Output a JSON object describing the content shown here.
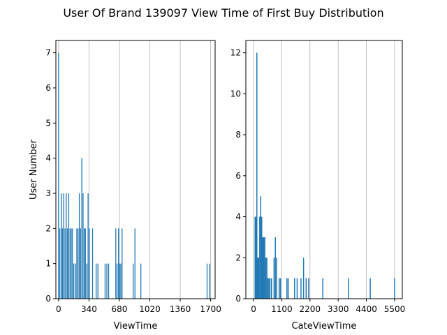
{
  "figure": {
    "title": "User Of Brand 139097 View Time of First Buy Distribution"
  },
  "colors": {
    "bar": "#1f77b4",
    "grid": "#b0b0b0",
    "axis": "#000000"
  },
  "chart_data": [
    {
      "type": "bar",
      "xlabel": "ViewTime",
      "ylabel": "User Number",
      "xlim": [
        -30,
        1750
      ],
      "ylim": [
        0,
        7.35
      ],
      "grid": "vertical",
      "bar_width": 10,
      "xticks": [
        0,
        340,
        680,
        1020,
        1360,
        1700
      ],
      "xtick_labels": [
        "0",
        "340",
        "680",
        "1020",
        "1360",
        "1700"
      ],
      "yticks": [
        0,
        1,
        2,
        3,
        4,
        5,
        6,
        7
      ],
      "ytick_labels": [
        "0",
        "1",
        "2",
        "3",
        "4",
        "5",
        "6",
        "7"
      ],
      "x": [
        0,
        14,
        30,
        44,
        58,
        72,
        86,
        100,
        114,
        128,
        142,
        156,
        170,
        190,
        204,
        218,
        232,
        246,
        260,
        274,
        288,
        300,
        316,
        330,
        344,
        380,
        420,
        440,
        520,
        540,
        560,
        640,
        654,
        670,
        684,
        696,
        710,
        834,
        854,
        920,
        1660,
        1690
      ],
      "values": [
        7,
        2,
        3,
        2,
        3,
        2,
        3,
        2,
        3,
        2,
        2,
        2,
        1,
        1,
        2,
        2,
        3,
        2,
        4,
        3,
        2,
        2,
        1,
        3,
        2,
        2,
        1,
        1,
        1,
        1,
        1,
        2,
        1,
        2,
        1,
        1,
        2,
        1,
        2,
        1,
        1,
        1
      ]
    },
    {
      "type": "bar",
      "xlabel": "CateViewTime",
      "ylabel": "",
      "xlim": [
        -300,
        5800
      ],
      "ylim": [
        0,
        12.6
      ],
      "grid": "vertical",
      "bar_width": 40,
      "xticks": [
        0,
        1100,
        2200,
        3300,
        4400,
        5500
      ],
      "xtick_labels": [
        "0",
        "1100",
        "2200",
        "3300",
        "4400",
        "5500"
      ],
      "yticks": [
        0,
        2,
        4,
        6,
        8,
        10,
        12
      ],
      "ytick_labels": [
        "0",
        "2",
        "4",
        "6",
        "8",
        "10",
        "12"
      ],
      "x": [
        60,
        100,
        130,
        170,
        200,
        240,
        280,
        320,
        360,
        400,
        440,
        480,
        520,
        560,
        600,
        640,
        700,
        800,
        850,
        900,
        1000,
        1050,
        1300,
        1350,
        1600,
        1700,
        1850,
        1950,
        2050,
        2150,
        2700,
        3700,
        4550,
        5500
      ],
      "values": [
        4,
        4,
        12,
        2,
        2,
        4,
        5,
        4,
        3,
        3,
        3,
        2,
        2,
        1,
        1,
        1,
        1,
        2,
        3,
        2,
        1,
        1,
        1,
        1,
        1,
        1,
        1,
        2,
        1,
        1,
        1,
        1,
        1,
        1
      ]
    }
  ]
}
